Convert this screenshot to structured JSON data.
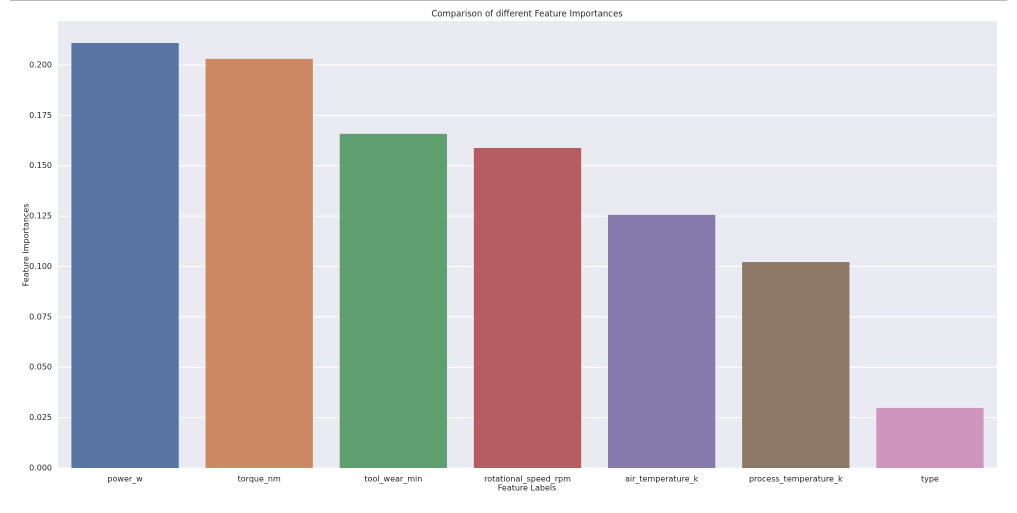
{
  "chart_data": {
    "type": "bar",
    "title": "Comparison of different Feature Importances",
    "x_label": "Feature Labels",
    "y_label": "Feature Importances",
    "categories": [
      "power_w",
      "torque_nm",
      "tool_wear_min",
      "rotational_speed_rpm",
      "air_temperature_k",
      "process_temperature_k",
      "type"
    ],
    "values": [
      0.2109,
      0.203,
      0.1658,
      0.1588,
      0.1256,
      0.1022,
      0.0298
    ],
    "colors": [
      "#5875a4",
      "#cc8963",
      "#5f9e6e",
      "#b55d60",
      "#857aab",
      "#8d7866",
      "#d095bf"
    ],
    "ylim": [
      0,
      0.2218
    ],
    "yticks": [
      {
        "value": 0,
        "label": "0.000"
      },
      {
        "value": 0.025,
        "label": "0.025"
      },
      {
        "value": 0.05,
        "label": "0.050"
      },
      {
        "value": 0.075,
        "label": "0.075"
      },
      {
        "value": 0.1,
        "label": "0.100"
      },
      {
        "value": 0.125,
        "label": "0.125"
      },
      {
        "value": 0.15,
        "label": "0.150"
      },
      {
        "value": 0.175,
        "label": "0.175"
      },
      {
        "value": 0.2,
        "label": "0.200"
      }
    ],
    "grid": true
  }
}
